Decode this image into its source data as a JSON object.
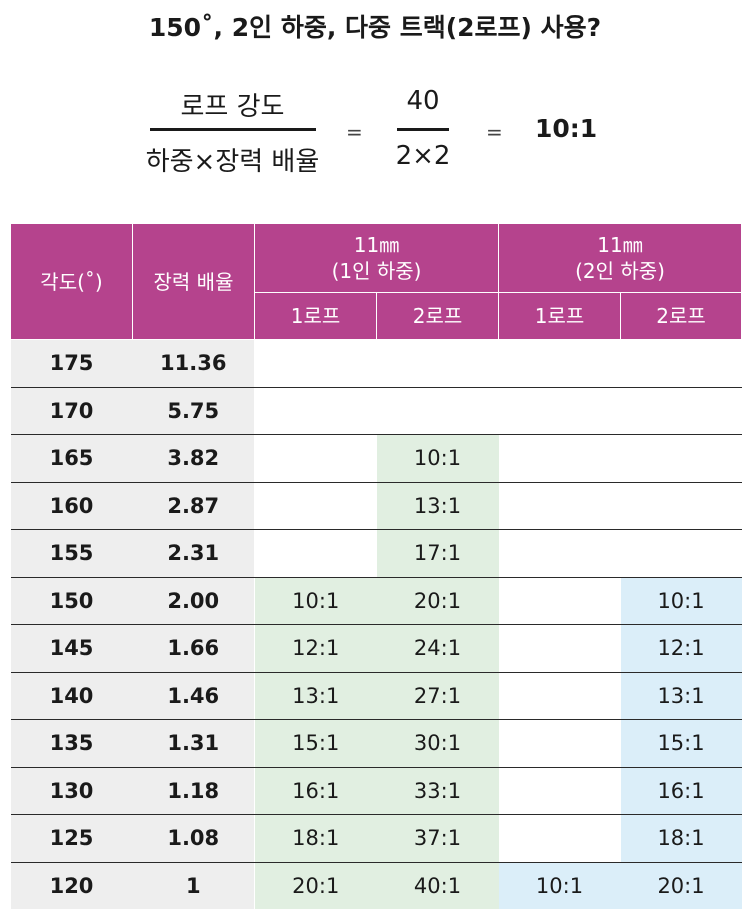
{
  "title": "150˚, 2인 하중, 다중 트랙(2로프) 사용?",
  "formula": {
    "left_numerator": "로프  강도",
    "left_denominator": "하중×장력 배율",
    "equals1": "=",
    "right_numerator": "40",
    "right_denominator": "2×2",
    "equals2": "=",
    "result": "10:1"
  },
  "table": {
    "header": {
      "angle": "각도(˚)",
      "tension_multiplier": "장력 배율",
      "group1_line1": "11㎜",
      "group1_line2": "(1인 하중)",
      "group2_line1": "11㎜",
      "group2_line2": "(2인 하중)",
      "sub": [
        "1로프",
        "2로프",
        "1로프",
        "2로프"
      ]
    },
    "rows": [
      {
        "angle": "175",
        "ratio": "11.36",
        "c1": "",
        "c2": "",
        "c3": "",
        "c4": ""
      },
      {
        "angle": "170",
        "ratio": "5.75",
        "c1": "",
        "c2": "",
        "c3": "",
        "c4": ""
      },
      {
        "angle": "165",
        "ratio": "3.82",
        "c1": "",
        "c2": "10:1",
        "c3": "",
        "c4": ""
      },
      {
        "angle": "160",
        "ratio": "2.87",
        "c1": "",
        "c2": "13:1",
        "c3": "",
        "c4": ""
      },
      {
        "angle": "155",
        "ratio": "2.31",
        "c1": "",
        "c2": "17:1",
        "c3": "",
        "c4": ""
      },
      {
        "angle": "150",
        "ratio": "2.00",
        "c1": "10:1",
        "c2": "20:1",
        "c3": "",
        "c4": "10:1"
      },
      {
        "angle": "145",
        "ratio": "1.66",
        "c1": "12:1",
        "c2": "24:1",
        "c3": "",
        "c4": "12:1"
      },
      {
        "angle": "140",
        "ratio": "1.46",
        "c1": "13:1",
        "c2": "27:1",
        "c3": "",
        "c4": "13:1"
      },
      {
        "angle": "135",
        "ratio": "1.31",
        "c1": "15:1",
        "c2": "30:1",
        "c3": "",
        "c4": "15:1"
      },
      {
        "angle": "130",
        "ratio": "1.18",
        "c1": "16:1",
        "c2": "33:1",
        "c3": "",
        "c4": "16:1"
      },
      {
        "angle": "125",
        "ratio": "1.08",
        "c1": "18:1",
        "c2": "37:1",
        "c3": "",
        "c4": "18:1"
      },
      {
        "angle": "120",
        "ratio": "1",
        "c1": "20:1",
        "c2": "40:1",
        "c3": "10:1",
        "c4": "20:1"
      }
    ]
  },
  "colors": {
    "header_bg": "#b5438d",
    "header_text": "#ffffff",
    "angle_col_bg": "#eeeeee",
    "green_cell": "#e1efe1",
    "blue_cell": "#dbeef9"
  }
}
